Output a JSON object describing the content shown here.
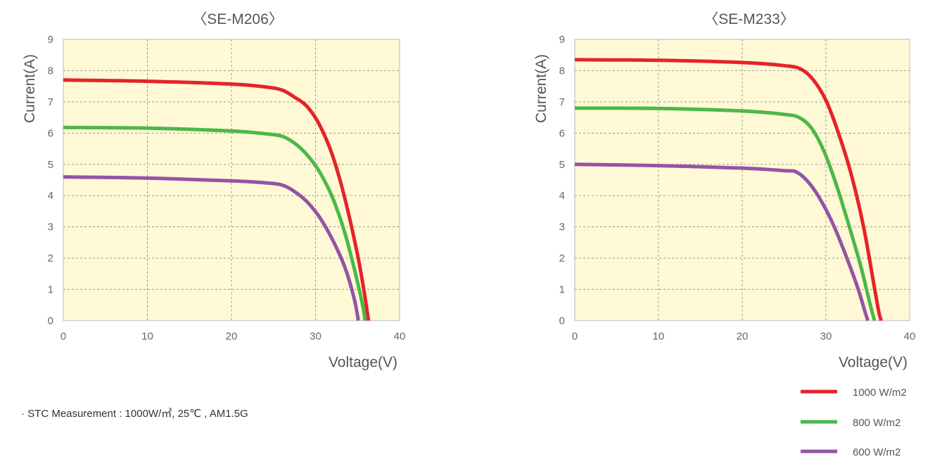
{
  "colors": {
    "plot_background": "#fff9d6",
    "series_1000": "#e5232a",
    "series_800": "#4cb848",
    "series_600": "#9553a6"
  },
  "legend": [
    {
      "label": "1000 W/m2",
      "color": "#e5232a"
    },
    {
      "label": "800 W/m2",
      "color": "#4cb848"
    },
    {
      "label": "600 W/m2",
      "color": "#9553a6"
    }
  ],
  "note": "· STC Measurement : 1000W/㎡, 25℃ , AM1.5G",
  "chart_data": [
    {
      "type": "line",
      "title": "〈SE-M206〉",
      "xlabel": "Voltage(V)",
      "ylabel": "Current(A)",
      "xlim": [
        0,
        40
      ],
      "ylim": [
        0,
        9
      ],
      "xticks": [
        "0",
        "10",
        "20",
        "30",
        "40"
      ],
      "yticks": [
        "0",
        "1",
        "2",
        "3",
        "4",
        "5",
        "6",
        "7",
        "8",
        "9"
      ],
      "grid": true,
      "legend_position": "bottom-right",
      "series": [
        {
          "name": "1000 W/m2",
          "color": "#e5232a",
          "points": [
            [
              0,
              7.7
            ],
            [
              10,
              7.66
            ],
            [
              20,
              7.57
            ],
            [
              24,
              7.48
            ],
            [
              26,
              7.38
            ],
            [
              27.5,
              7.15
            ],
            [
              29,
              6.85
            ],
            [
              30.5,
              6.25
            ],
            [
              32,
              5.3
            ],
            [
              33.5,
              3.9
            ],
            [
              35,
              2.1
            ],
            [
              35.8,
              0.9
            ],
            [
              36.3,
              0
            ]
          ]
        },
        {
          "name": "800 W/m2",
          "color": "#4cb848",
          "points": [
            [
              0,
              6.18
            ],
            [
              10,
              6.16
            ],
            [
              20,
              6.07
            ],
            [
              24,
              5.98
            ],
            [
              26,
              5.9
            ],
            [
              27.5,
              5.68
            ],
            [
              29,
              5.3
            ],
            [
              30.5,
              4.75
            ],
            [
              32,
              3.95
            ],
            [
              33.5,
              2.8
            ],
            [
              34.8,
              1.45
            ],
            [
              35.6,
              0.5
            ],
            [
              35.9,
              0
            ]
          ]
        },
        {
          "name": "600 W/m2",
          "color": "#9553a6",
          "points": [
            [
              0,
              4.6
            ],
            [
              10,
              4.56
            ],
            [
              20,
              4.47
            ],
            [
              24,
              4.41
            ],
            [
              26,
              4.34
            ],
            [
              27.5,
              4.13
            ],
            [
              29,
              3.8
            ],
            [
              30.5,
              3.3
            ],
            [
              32,
              2.6
            ],
            [
              33.5,
              1.7
            ],
            [
              34.6,
              0.7
            ],
            [
              35.1,
              0
            ]
          ]
        }
      ]
    },
    {
      "type": "line",
      "title": "〈SE-M233〉",
      "xlabel": "Voltage(V)",
      "ylabel": "Current(A)",
      "xlim": [
        0,
        40
      ],
      "ylim": [
        0,
        9
      ],
      "xticks": [
        "0",
        "10",
        "20",
        "30",
        "40"
      ],
      "yticks": [
        "0",
        "1",
        "2",
        "3",
        "4",
        "5",
        "6",
        "7",
        "8",
        "9"
      ],
      "grid": true,
      "legend_position": "bottom-right",
      "series": [
        {
          "name": "1000 W/m2",
          "color": "#e5232a",
          "points": [
            [
              0,
              8.35
            ],
            [
              10,
              8.33
            ],
            [
              20,
              8.26
            ],
            [
              25,
              8.16
            ],
            [
              27,
              8.05
            ],
            [
              28.5,
              7.7
            ],
            [
              30,
              7.05
            ],
            [
              31.5,
              6.0
            ],
            [
              33,
              4.7
            ],
            [
              34.5,
              3.0
            ],
            [
              35.7,
              1.2
            ],
            [
              36.3,
              0.3
            ],
            [
              36.6,
              0
            ]
          ]
        },
        {
          "name": "800 W/m2",
          "color": "#4cb848",
          "points": [
            [
              0,
              6.8
            ],
            [
              10,
              6.79
            ],
            [
              20,
              6.71
            ],
            [
              25,
              6.6
            ],
            [
              26.8,
              6.5
            ],
            [
              28.3,
              6.15
            ],
            [
              29.8,
              5.4
            ],
            [
              31.3,
              4.3
            ],
            [
              32.8,
              3.0
            ],
            [
              34.2,
              1.7
            ],
            [
              35.3,
              0.5
            ],
            [
              35.8,
              0
            ]
          ]
        },
        {
          "name": "600 W/m2",
          "color": "#9553a6",
          "points": [
            [
              0,
              5.0
            ],
            [
              10,
              4.96
            ],
            [
              20,
              4.88
            ],
            [
              25,
              4.8
            ],
            [
              26.5,
              4.75
            ],
            [
              28,
              4.4
            ],
            [
              29.5,
              3.8
            ],
            [
              31,
              3.0
            ],
            [
              32.5,
              2.0
            ],
            [
              33.8,
              1.05
            ],
            [
              34.6,
              0.35
            ],
            [
              35,
              0
            ]
          ]
        }
      ]
    }
  ]
}
